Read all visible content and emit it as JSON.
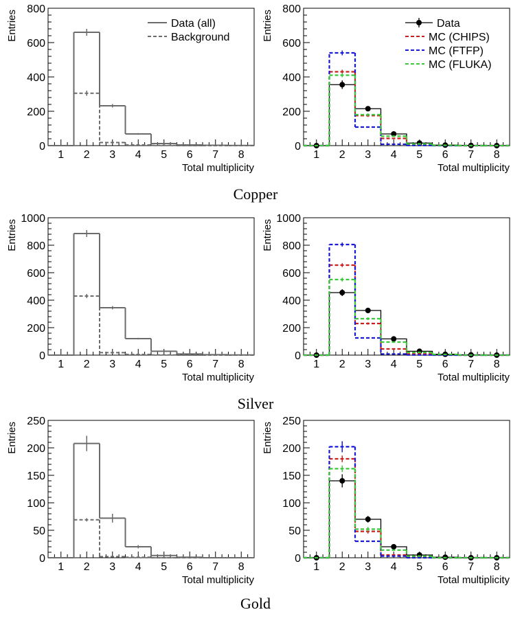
{
  "chart_data": [
    {
      "type": "bar",
      "row": "Copper",
      "side": "left",
      "xlabel": "Total multiplicity",
      "ylabel": "Entries",
      "ylim": [
        0,
        800
      ],
      "yticks": [
        0,
        200,
        400,
        600,
        800
      ],
      "categories": [
        "1",
        "2",
        "3",
        "4",
        "5",
        "6",
        "7",
        "8"
      ],
      "legend": "top-right",
      "series": [
        {
          "name": "Data (all)",
          "style": "solid",
          "color": "#6b6b6b",
          "values": [
            0,
            660,
            232,
            68,
            12,
            4,
            2,
            1
          ],
          "errors": [
            0,
            20,
            10,
            5,
            0,
            0,
            0,
            0
          ]
        },
        {
          "name": "Background",
          "style": "dashed",
          "color": "#6b6b6b",
          "values": [
            0,
            305,
            18,
            4,
            1,
            0,
            0,
            0
          ],
          "errors": [
            0,
            15,
            0,
            0,
            0,
            0,
            0,
            0
          ]
        }
      ]
    },
    {
      "type": "bar",
      "row": "Copper",
      "side": "right",
      "xlabel": "Total multiplicity",
      "ylabel": "Entries",
      "ylim": [
        0,
        800
      ],
      "yticks": [
        0,
        200,
        400,
        600,
        800
      ],
      "categories": [
        "1",
        "2",
        "3",
        "4",
        "5",
        "6",
        "7",
        "8"
      ],
      "legend": "top-right",
      "series": [
        {
          "name": "Data",
          "style": "marker",
          "color": "#000000",
          "values": [
            0,
            355,
            215,
            68,
            15,
            3,
            1,
            0
          ],
          "errors": [
            0,
            25,
            12,
            6,
            3,
            0,
            0,
            0
          ]
        },
        {
          "name": "MC (CHIPS)",
          "style": "dashed",
          "color": "#cc1f1f",
          "values": [
            0,
            430,
            175,
            42,
            8,
            2,
            0,
            0
          ],
          "errors": [
            0,
            12,
            8,
            0,
            0,
            0,
            0,
            0
          ]
        },
        {
          "name": "MC (FTFP)",
          "style": "dashed",
          "color": "#1a1ad6",
          "values": [
            0,
            540,
            108,
            8,
            1,
            0,
            0,
            0
          ],
          "errors": [
            0,
            14,
            0,
            0,
            0,
            0,
            0,
            0
          ]
        },
        {
          "name": "MC (FLUKA)",
          "style": "dashed",
          "color": "#3ac73a",
          "values": [
            0,
            410,
            180,
            55,
            10,
            2,
            0,
            0
          ],
          "errors": [
            0,
            12,
            8,
            0,
            0,
            0,
            0,
            0
          ]
        }
      ]
    },
    {
      "type": "bar",
      "row": "Silver",
      "side": "left",
      "xlabel": "Total multiplicity",
      "ylabel": "Entries",
      "ylim": [
        0,
        1000
      ],
      "yticks": [
        0,
        200,
        400,
        600,
        800,
        1000
      ],
      "categories": [
        "1",
        "2",
        "3",
        "4",
        "5",
        "6",
        "7",
        "8"
      ],
      "series": [
        {
          "name": "Data (all)",
          "style": "solid",
          "color": "#6b6b6b",
          "values": [
            0,
            885,
            345,
            120,
            28,
            8,
            3,
            1
          ],
          "errors": [
            0,
            25,
            12,
            6,
            0,
            0,
            0,
            0
          ]
        },
        {
          "name": "Background",
          "style": "dashed",
          "color": "#6b6b6b",
          "values": [
            0,
            430,
            18,
            5,
            1,
            0,
            0,
            0
          ],
          "errors": [
            0,
            15,
            0,
            0,
            0,
            0,
            0,
            0
          ]
        }
      ]
    },
    {
      "type": "bar",
      "row": "Silver",
      "side": "right",
      "xlabel": "Total multiplicity",
      "ylabel": "Entries",
      "ylim": [
        0,
        1000
      ],
      "yticks": [
        0,
        200,
        400,
        600,
        800,
        1000
      ],
      "categories": [
        "1",
        "2",
        "3",
        "4",
        "5",
        "6",
        "7",
        "8"
      ],
      "series": [
        {
          "name": "Data",
          "style": "marker",
          "color": "#000000",
          "values": [
            0,
            455,
            325,
            118,
            28,
            6,
            2,
            0
          ],
          "errors": [
            0,
            25,
            15,
            8,
            4,
            0,
            0,
            0
          ]
        },
        {
          "name": "MC (CHIPS)",
          "style": "dashed",
          "color": "#cc1f1f",
          "values": [
            0,
            655,
            230,
            45,
            8,
            2,
            0,
            0
          ],
          "errors": [
            0,
            14,
            8,
            0,
            0,
            0,
            0,
            0
          ]
        },
        {
          "name": "MC (FTFP)",
          "style": "dashed",
          "color": "#1a1ad6",
          "values": [
            0,
            805,
            125,
            8,
            1,
            0,
            0,
            0
          ],
          "errors": [
            0,
            15,
            0,
            0,
            0,
            0,
            0,
            0
          ]
        },
        {
          "name": "MC (FLUKA)",
          "style": "dashed",
          "color": "#3ac73a",
          "values": [
            0,
            550,
            265,
            95,
            20,
            5,
            1,
            0
          ],
          "errors": [
            0,
            14,
            10,
            0,
            0,
            0,
            0,
            0
          ]
        }
      ]
    },
    {
      "type": "bar",
      "row": "Gold",
      "side": "left",
      "xlabel": "Total multiplicity",
      "ylabel": "Entries",
      "ylim": [
        0,
        250
      ],
      "yticks": [
        0,
        50,
        100,
        150,
        200,
        250
      ],
      "categories": [
        "1",
        "2",
        "3",
        "4",
        "5",
        "6",
        "7",
        "8"
      ],
      "series": [
        {
          "name": "Data (all)",
          "style": "solid",
          "color": "#6b6b6b",
          "values": [
            0,
            208,
            72,
            20,
            4,
            1,
            0,
            0
          ],
          "errors": [
            0,
            14,
            8,
            3,
            0,
            0,
            0,
            0
          ]
        },
        {
          "name": "Background",
          "style": "dashed",
          "color": "#6b6b6b",
          "values": [
            0,
            69,
            2,
            1,
            0,
            0,
            0,
            0
          ],
          "errors": [
            0,
            3,
            0,
            0,
            0,
            0,
            0,
            0
          ]
        }
      ]
    },
    {
      "type": "bar",
      "row": "Gold",
      "side": "right",
      "xlabel": "Total multiplicity",
      "ylabel": "Entries",
      "ylim": [
        0,
        250
      ],
      "yticks": [
        0,
        50,
        100,
        150,
        200,
        250
      ],
      "categories": [
        "1",
        "2",
        "3",
        "4",
        "5",
        "6",
        "7",
        "8"
      ],
      "series": [
        {
          "name": "Data",
          "style": "marker",
          "color": "#000000",
          "values": [
            0,
            140,
            70,
            20,
            5,
            1,
            0,
            0
          ],
          "errors": [
            0,
            12,
            6,
            3,
            1,
            0,
            0,
            0
          ]
        },
        {
          "name": "MC (CHIPS)",
          "style": "dashed",
          "color": "#cc1f1f",
          "values": [
            0,
            180,
            48,
            5,
            1,
            0,
            0,
            0
          ],
          "errors": [
            0,
            6,
            4,
            0,
            0,
            0,
            0,
            0
          ]
        },
        {
          "name": "MC (FTFP)",
          "style": "dashed",
          "color": "#1a1ad6",
          "values": [
            0,
            202,
            30,
            3,
            0,
            0,
            0,
            0
          ],
          "errors": [
            0,
            10,
            0,
            0,
            0,
            0,
            0,
            0
          ]
        },
        {
          "name": "MC (FLUKA)",
          "style": "dashed",
          "color": "#3ac73a",
          "values": [
            0,
            162,
            52,
            14,
            3,
            0,
            0,
            0
          ],
          "errors": [
            0,
            6,
            4,
            0,
            0,
            0,
            0,
            0
          ]
        }
      ]
    }
  ],
  "row_labels": [
    "Copper",
    "Silver",
    "Gold"
  ]
}
